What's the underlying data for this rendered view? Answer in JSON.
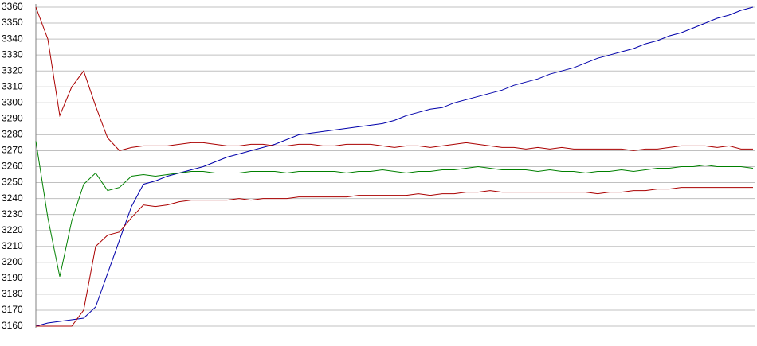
{
  "chart_data": {
    "type": "line",
    "ylim": [
      3160,
      3360
    ],
    "yticks": [
      3160,
      3170,
      3180,
      3190,
      3200,
      3210,
      3220,
      3230,
      3240,
      3250,
      3260,
      3270,
      3280,
      3290,
      3300,
      3310,
      3320,
      3330,
      3340,
      3350,
      3360
    ],
    "grid": true,
    "series": [
      {
        "color": "#0000aa",
        "values": [
          3160,
          3162,
          3163,
          3164,
          3165,
          3172,
          3193,
          3214,
          3235,
          3249,
          3251,
          3254,
          3256,
          3258,
          3260,
          3263,
          3266,
          3268,
          3270,
          3272,
          3274,
          3277,
          3280,
          3281,
          3282,
          3283,
          3284,
          3285,
          3286,
          3287,
          3289,
          3292,
          3294,
          3296,
          3297,
          3300,
          3302,
          3304,
          3306,
          3308,
          3311,
          3313,
          3315,
          3318,
          3320,
          3322,
          3325,
          3328,
          3330,
          3332,
          3334,
          3337,
          3339,
          3342,
          3344,
          3347,
          3350,
          3353,
          3355,
          3358,
          3360
        ]
      },
      {
        "color": "#008000",
        "values": [
          3276,
          3228,
          3191,
          3226,
          3249,
          3256,
          3245,
          3247,
          3254,
          3255,
          3254,
          3255,
          3256,
          3257,
          3257,
          3256,
          3256,
          3256,
          3257,
          3257,
          3257,
          3256,
          3257,
          3257,
          3257,
          3257,
          3256,
          3257,
          3257,
          3258,
          3257,
          3256,
          3257,
          3257,
          3258,
          3258,
          3259,
          3260,
          3259,
          3258,
          3258,
          3258,
          3257,
          3258,
          3257,
          3257,
          3256,
          3257,
          3257,
          3258,
          3257,
          3258,
          3259,
          3259,
          3260,
          3260,
          3261,
          3260,
          3260,
          3260,
          3259
        ]
      },
      {
        "color": "#aa0000",
        "values": [
          3360,
          3340,
          3292,
          3310,
          3320,
          3298,
          3278,
          3270,
          3272,
          3273,
          3273,
          3273,
          3274,
          3275,
          3275,
          3274,
          3273,
          3273,
          3274,
          3274,
          3273,
          3273,
          3274,
          3274,
          3273,
          3273,
          3274,
          3274,
          3274,
          3273,
          3272,
          3273,
          3273,
          3272,
          3273,
          3274,
          3275,
          3274,
          3273,
          3272,
          3272,
          3271,
          3272,
          3271,
          3272,
          3271,
          3271,
          3271,
          3271,
          3271,
          3270,
          3271,
          3271,
          3272,
          3273,
          3273,
          3273,
          3272,
          3273,
          3271,
          3271
        ]
      },
      {
        "color": "#aa0000",
        "values": [
          3160,
          3160,
          3160,
          3160,
          3170,
          3210,
          3217,
          3219,
          3228,
          3236,
          3235,
          3236,
          3238,
          3239,
          3239,
          3239,
          3239,
          3240,
          3239,
          3240,
          3240,
          3240,
          3241,
          3241,
          3241,
          3241,
          3241,
          3242,
          3242,
          3242,
          3242,
          3242,
          3243,
          3242,
          3243,
          3243,
          3244,
          3244,
          3245,
          3244,
          3244,
          3244,
          3244,
          3244,
          3244,
          3244,
          3244,
          3243,
          3244,
          3244,
          3245,
          3245,
          3246,
          3246,
          3247,
          3247,
          3247,
          3247,
          3247,
          3247,
          3247
        ]
      }
    ]
  }
}
